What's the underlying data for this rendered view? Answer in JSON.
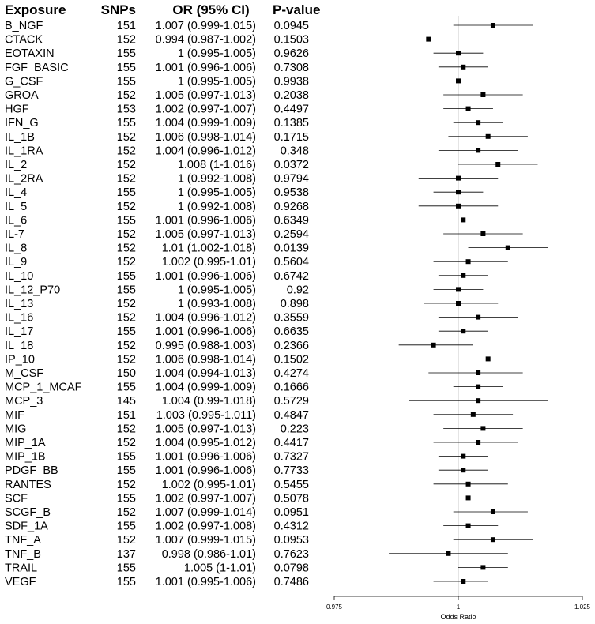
{
  "chart_data": {
    "type": "forest",
    "columns": [
      "Exposure",
      "SNPs",
      "OR (95% CI)",
      "P-value"
    ],
    "xlabel": "Odds Ratio",
    "xlim": [
      0.975,
      1.025
    ],
    "xticks": [
      "0.975",
      "1",
      "1.025"
    ],
    "reference_line": 1,
    "rows": [
      {
        "exposure": "B_NGF",
        "snps": "151",
        "or_ci": "1.007 (0.999-1.015)",
        "p": "0.0945",
        "or": 1.007,
        "lo": 0.999,
        "hi": 1.015
      },
      {
        "exposure": "CTACK",
        "snps": "152",
        "or_ci": "0.994 (0.987-1.002)",
        "p": "0.1503",
        "or": 0.994,
        "lo": 0.987,
        "hi": 1.002
      },
      {
        "exposure": "EOTAXIN",
        "snps": "155",
        "or_ci": "1 (0.995-1.005)",
        "p": "0.9626",
        "or": 1.0,
        "lo": 0.995,
        "hi": 1.005
      },
      {
        "exposure": "FGF_BASIC",
        "snps": "155",
        "or_ci": "1.001 (0.996-1.006)",
        "p": "0.7308",
        "or": 1.001,
        "lo": 0.996,
        "hi": 1.006
      },
      {
        "exposure": "G_CSF",
        "snps": "155",
        "or_ci": "1 (0.995-1.005)",
        "p": "0.9938",
        "or": 1.0,
        "lo": 0.995,
        "hi": 1.005
      },
      {
        "exposure": "GROA",
        "snps": "152",
        "or_ci": "1.005 (0.997-1.013)",
        "p": "0.2038",
        "or": 1.005,
        "lo": 0.997,
        "hi": 1.013
      },
      {
        "exposure": "HGF",
        "snps": "153",
        "or_ci": "1.002 (0.997-1.007)",
        "p": "0.4497",
        "or": 1.002,
        "lo": 0.997,
        "hi": 1.007
      },
      {
        "exposure": "IFN_G",
        "snps": "155",
        "or_ci": "1.004 (0.999-1.009)",
        "p": "0.1385",
        "or": 1.004,
        "lo": 0.999,
        "hi": 1.009
      },
      {
        "exposure": "IL_1B",
        "snps": "152",
        "or_ci": "1.006 (0.998-1.014)",
        "p": "0.1715",
        "or": 1.006,
        "lo": 0.998,
        "hi": 1.014
      },
      {
        "exposure": "IL_1RA",
        "snps": "152",
        "or_ci": "1.004 (0.996-1.012)",
        "p": "0.348",
        "or": 1.004,
        "lo": 0.996,
        "hi": 1.012
      },
      {
        "exposure": "IL_2",
        "snps": "152",
        "or_ci": "1.008 (1-1.016)",
        "p": "0.0372",
        "or": 1.008,
        "lo": 1.0,
        "hi": 1.016
      },
      {
        "exposure": "IL_2RA",
        "snps": "152",
        "or_ci": "1 (0.992-1.008)",
        "p": "0.9794",
        "or": 1.0,
        "lo": 0.992,
        "hi": 1.008
      },
      {
        "exposure": "IL_4",
        "snps": "155",
        "or_ci": "1 (0.995-1.005)",
        "p": "0.9538",
        "or": 1.0,
        "lo": 0.995,
        "hi": 1.005
      },
      {
        "exposure": "IL_5",
        "snps": "152",
        "or_ci": "1 (0.992-1.008)",
        "p": "0.9268",
        "or": 1.0,
        "lo": 0.992,
        "hi": 1.008
      },
      {
        "exposure": "IL_6",
        "snps": "155",
        "or_ci": "1.001 (0.996-1.006)",
        "p": "0.6349",
        "or": 1.001,
        "lo": 0.996,
        "hi": 1.006
      },
      {
        "exposure": "IL-7",
        "snps": "152",
        "or_ci": "1.005 (0.997-1.013)",
        "p": "0.2594",
        "or": 1.005,
        "lo": 0.997,
        "hi": 1.013
      },
      {
        "exposure": "IL_8",
        "snps": "152",
        "or_ci": "1.01 (1.002-1.018)",
        "p": "0.0139",
        "or": 1.01,
        "lo": 1.002,
        "hi": 1.018
      },
      {
        "exposure": "IL_9",
        "snps": "152",
        "or_ci": "1.002 (0.995-1.01)",
        "p": "0.5604",
        "or": 1.002,
        "lo": 0.995,
        "hi": 1.01
      },
      {
        "exposure": "IL_10",
        "snps": "155",
        "or_ci": "1.001 (0.996-1.006)",
        "p": "0.6742",
        "or": 1.001,
        "lo": 0.996,
        "hi": 1.006
      },
      {
        "exposure": "IL_12_P70",
        "snps": "155",
        "or_ci": "1 (0.995-1.005)",
        "p": "0.92",
        "or": 1.0,
        "lo": 0.995,
        "hi": 1.005
      },
      {
        "exposure": "IL_13",
        "snps": "152",
        "or_ci": "1 (0.993-1.008)",
        "p": "0.898",
        "or": 1.0,
        "lo": 0.993,
        "hi": 1.008
      },
      {
        "exposure": "IL_16",
        "snps": "152",
        "or_ci": "1.004 (0.996-1.012)",
        "p": "0.3559",
        "or": 1.004,
        "lo": 0.996,
        "hi": 1.012
      },
      {
        "exposure": "IL_17",
        "snps": "155",
        "or_ci": "1.001 (0.996-1.006)",
        "p": "0.6635",
        "or": 1.001,
        "lo": 0.996,
        "hi": 1.006
      },
      {
        "exposure": "IL_18",
        "snps": "152",
        "or_ci": "0.995 (0.988-1.003)",
        "p": "0.2366",
        "or": 0.995,
        "lo": 0.988,
        "hi": 1.003
      },
      {
        "exposure": "IP_10",
        "snps": "152",
        "or_ci": "1.006 (0.998-1.014)",
        "p": "0.1502",
        "or": 1.006,
        "lo": 0.998,
        "hi": 1.014
      },
      {
        "exposure": "M_CSF",
        "snps": "150",
        "or_ci": "1.004 (0.994-1.013)",
        "p": "0.4274",
        "or": 1.004,
        "lo": 0.994,
        "hi": 1.013
      },
      {
        "exposure": "MCP_1_MCAF",
        "snps": "155",
        "or_ci": "1.004 (0.999-1.009)",
        "p": "0.1666",
        "or": 1.004,
        "lo": 0.999,
        "hi": 1.009
      },
      {
        "exposure": "MCP_3",
        "snps": "145",
        "or_ci": "1.004 (0.99-1.018)",
        "p": "0.5729",
        "or": 1.004,
        "lo": 0.99,
        "hi": 1.018
      },
      {
        "exposure": "MIF",
        "snps": "151",
        "or_ci": "1.003 (0.995-1.011)",
        "p": "0.4847",
        "or": 1.003,
        "lo": 0.995,
        "hi": 1.011
      },
      {
        "exposure": "MIG",
        "snps": "152",
        "or_ci": "1.005 (0.997-1.013)",
        "p": "0.223",
        "or": 1.005,
        "lo": 0.997,
        "hi": 1.013
      },
      {
        "exposure": "MIP_1A",
        "snps": "152",
        "or_ci": "1.004 (0.995-1.012)",
        "p": "0.4417",
        "or": 1.004,
        "lo": 0.995,
        "hi": 1.012
      },
      {
        "exposure": "MIP_1B",
        "snps": "155",
        "or_ci": "1.001 (0.996-1.006)",
        "p": "0.7327",
        "or": 1.001,
        "lo": 0.996,
        "hi": 1.006
      },
      {
        "exposure": "PDGF_BB",
        "snps": "155",
        "or_ci": "1.001 (0.996-1.006)",
        "p": "0.7733",
        "or": 1.001,
        "lo": 0.996,
        "hi": 1.006
      },
      {
        "exposure": "RANTES",
        "snps": "152",
        "or_ci": "1.002 (0.995-1.01)",
        "p": "0.5455",
        "or": 1.002,
        "lo": 0.995,
        "hi": 1.01
      },
      {
        "exposure": "SCF",
        "snps": "155",
        "or_ci": "1.002 (0.997-1.007)",
        "p": "0.5078",
        "or": 1.002,
        "lo": 0.997,
        "hi": 1.007
      },
      {
        "exposure": "SCGF_B",
        "snps": "152",
        "or_ci": "1.007 (0.999-1.014)",
        "p": "0.0951",
        "or": 1.007,
        "lo": 0.999,
        "hi": 1.014
      },
      {
        "exposure": "SDF_1A",
        "snps": "155",
        "or_ci": "1.002 (0.997-1.008)",
        "p": "0.4312",
        "or": 1.002,
        "lo": 0.997,
        "hi": 1.008
      },
      {
        "exposure": "TNF_A",
        "snps": "152",
        "or_ci": "1.007 (0.999-1.015)",
        "p": "0.0953",
        "or": 1.007,
        "lo": 0.999,
        "hi": 1.015
      },
      {
        "exposure": "TNF_B",
        "snps": "137",
        "or_ci": "0.998 (0.986-1.01)",
        "p": "0.7623",
        "or": 0.998,
        "lo": 0.986,
        "hi": 1.01
      },
      {
        "exposure": "TRAIL",
        "snps": "155",
        "or_ci": "1.005 (1-1.01)",
        "p": "0.0798",
        "or": 1.005,
        "lo": 1.0,
        "hi": 1.01
      },
      {
        "exposure": "VEGF",
        "snps": "155",
        "or_ci": "1.001 (0.995-1.006)",
        "p": "0.7486",
        "or": 1.001,
        "lo": 0.995,
        "hi": 1.006
      }
    ]
  }
}
